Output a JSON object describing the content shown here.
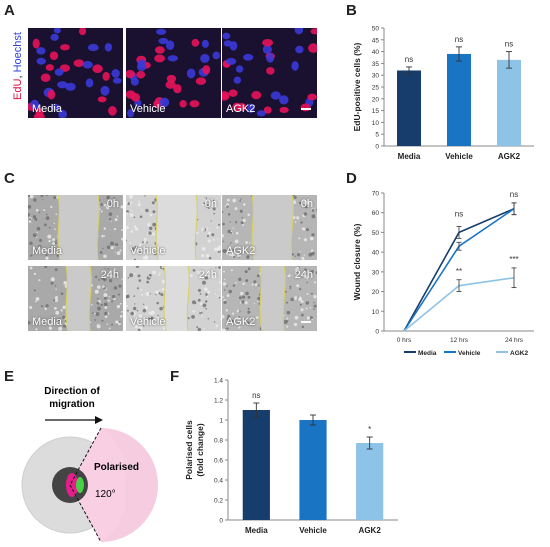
{
  "panels": {
    "A": {
      "label": "A",
      "side_label_edu": "EdU",
      "side_label_sep": ", ",
      "side_label_hoechst": "Hoechst",
      "images": [
        "Media",
        "Vehicle",
        "AGK2"
      ]
    },
    "B": {
      "label": "B"
    },
    "C": {
      "label": "C",
      "rows": [
        {
          "time": "0h",
          "images": [
            "Media",
            "Vehicle",
            "AGK2"
          ]
        },
        {
          "time": "24h",
          "images": [
            "Media",
            "Vehicle",
            "AGK2"
          ]
        }
      ]
    },
    "D": {
      "label": "D"
    },
    "E": {
      "label": "E",
      "direction_text_line1": "Direction of",
      "direction_text_line2": "migration",
      "polarised_text": "Polarised",
      "angle_text": "120°"
    },
    "F": {
      "label": "F"
    }
  },
  "colors": {
    "media": "#163d6b",
    "vehicle": "#1a74c4",
    "agk2": "#8ec3e8",
    "edu": "#e0103a",
    "hoechst": "#2a3fd9"
  },
  "chart_data": [
    {
      "id": "B",
      "type": "bar",
      "categories": [
        "Media",
        "Vehicle",
        "AGK2"
      ],
      "values": [
        32,
        39,
        36.5
      ],
      "errors": [
        1.5,
        3,
        3.5
      ],
      "annotations": [
        "ns",
        "ns",
        "ns"
      ],
      "ylabel": "EdU-positive cells (%)",
      "ylim": [
        0,
        50
      ],
      "yticks": [
        "0",
        "5",
        "10",
        "15",
        "20",
        "25",
        "30",
        "35",
        "40",
        "45",
        "50"
      ]
    },
    {
      "id": "D",
      "type": "line",
      "x": [
        "0 hrs",
        "12 hrs",
        "24 hrs"
      ],
      "ylabel": "Wound closure (%)",
      "ylim": [
        0,
        70
      ],
      "yticks": [
        "0",
        "10",
        "20",
        "30",
        "40",
        "50",
        "60",
        "70"
      ],
      "series": [
        {
          "name": "Media",
          "values": [
            0,
            50,
            62
          ],
          "errors": [
            0,
            3,
            3
          ]
        },
        {
          "name": "Vehicle",
          "values": [
            0,
            43,
            62
          ],
          "errors": [
            0,
            2,
            3
          ]
        },
        {
          "name": "AGK2",
          "values": [
            0,
            23,
            27
          ],
          "errors": [
            0,
            3,
            5
          ]
        }
      ],
      "annotations_12": [
        "ns",
        "**"
      ],
      "annotations_24": [
        "ns",
        "***"
      ],
      "legend": "bottom"
    },
    {
      "id": "F",
      "type": "bar",
      "categories": [
        "Media",
        "Vehicle",
        "AGK2"
      ],
      "values": [
        1.1,
        1.0,
        0.77
      ],
      "errors": [
        0.07,
        0.05,
        0.06
      ],
      "annotations": [
        "ns",
        "",
        "*"
      ],
      "ylabel_line1": "Polarised cells",
      "ylabel_line2": "(fold change)",
      "ylim": [
        0,
        1.4
      ],
      "yticks": [
        "0",
        "0.2",
        "0.4",
        "0.6",
        "0.8",
        "1",
        "1.2",
        "1.4"
      ]
    }
  ]
}
